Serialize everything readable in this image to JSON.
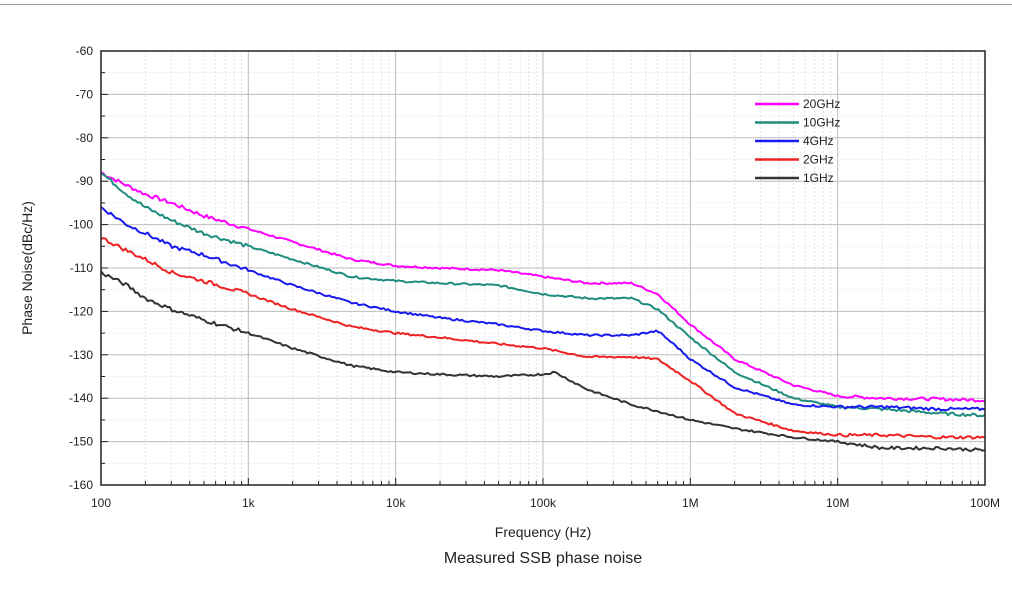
{
  "chart_data": {
    "type": "line",
    "title": "",
    "caption": "Measured SSB phase noise",
    "xlabel": "Frequency (Hz)",
    "ylabel": "Phase Noise(dBc/Hz)",
    "xscale": "log",
    "xlim": [
      100,
      100000000
    ],
    "ylim": [
      -160,
      -60
    ],
    "xticks": [
      100,
      1000,
      10000,
      100000,
      1000000,
      10000000,
      100000000
    ],
    "xtick_labels": [
      "100",
      "1k",
      "10k",
      "100k",
      "1M",
      "10M",
      "100M"
    ],
    "yticks": [
      -60,
      -70,
      -80,
      -90,
      -100,
      -110,
      -120,
      -130,
      -140,
      -150,
      -160
    ],
    "ytick_labels": [
      "-60",
      "-70",
      "-80",
      "-90",
      "-100",
      "-110",
      "-120",
      "-130",
      "-140",
      "-150",
      "-160"
    ],
    "grid": true,
    "legend_position": "top-right",
    "series": [
      {
        "name": "20GHz",
        "color": "#ff00ff",
        "x": [
          100,
          150,
          200,
          300,
          500,
          1000,
          2000,
          5000,
          10000,
          20000,
          50000,
          100000,
          200000,
          400000,
          600000,
          1000000,
          2000000,
          5000000,
          10000000,
          20000000,
          50000000,
          100000000
        ],
        "y": [
          -88,
          -91,
          -93,
          -95,
          -98,
          -101,
          -104,
          -108,
          -109.5,
          -110,
          -110.5,
          -112,
          -113.5,
          -113.5,
          -116,
          -123,
          -131,
          -137,
          -139.5,
          -140,
          -140.2,
          -140.5
        ]
      },
      {
        "name": "10GHz",
        "color": "#1e8c7e",
        "x": [
          100,
          150,
          200,
          300,
          500,
          1000,
          2000,
          5000,
          10000,
          20000,
          50000,
          100000,
          200000,
          400000,
          600000,
          1000000,
          2000000,
          5000000,
          10000000,
          20000000,
          50000000,
          100000000
        ],
        "y": [
          -88,
          -93,
          -96,
          -99,
          -102,
          -105,
          -108,
          -112,
          -113,
          -113.5,
          -114,
          -116,
          -117,
          -117,
          -119.5,
          -126,
          -134,
          -140,
          -142,
          -142.5,
          -143.5,
          -144
        ]
      },
      {
        "name": "4GHz",
        "color": "#1a1aee",
        "x": [
          100,
          150,
          200,
          300,
          500,
          1000,
          2000,
          5000,
          10000,
          20000,
          50000,
          100000,
          200000,
          400000,
          600000,
          800000,
          1000000,
          2000000,
          5000000,
          10000000,
          20000000,
          50000000,
          100000000
        ],
        "y": [
          -96,
          -100,
          -102,
          -105,
          -107,
          -110.5,
          -114,
          -118,
          -120,
          -121.5,
          -123,
          -124.5,
          -125.5,
          -125.5,
          -124.5,
          -128,
          -131,
          -137.5,
          -141.5,
          -142,
          -142,
          -142.5,
          -142.5
        ]
      },
      {
        "name": "2GHz",
        "color": "#ee2222",
        "x": [
          100,
          150,
          200,
          300,
          500,
          1000,
          2000,
          5000,
          10000,
          20000,
          50000,
          100000,
          200000,
          400000,
          600000,
          1000000,
          2000000,
          5000000,
          10000000,
          20000000,
          50000000,
          100000000
        ],
        "y": [
          -103,
          -106,
          -108,
          -111,
          -113,
          -116,
          -119.5,
          -123.5,
          -125,
          -126,
          -127.5,
          -128.5,
          -130.5,
          -130.5,
          -131,
          -136,
          -143.5,
          -147.5,
          -148.5,
          -148.5,
          -149,
          -149
        ]
      },
      {
        "name": "1GHz",
        "color": "#333333",
        "x": [
          100,
          150,
          200,
          300,
          500,
          1000,
          2000,
          5000,
          10000,
          20000,
          50000,
          100000,
          120000,
          200000,
          400000,
          600000,
          1000000,
          2000000,
          5000000,
          10000000,
          20000000,
          50000000,
          100000000
        ],
        "y": [
          -111,
          -114,
          -117,
          -119.5,
          -122,
          -125,
          -128.5,
          -132.5,
          -134,
          -134.5,
          -135,
          -134.5,
          -134,
          -138,
          -141.5,
          -143,
          -145,
          -147,
          -149,
          -150,
          -151.5,
          -151.5,
          -152
        ]
      }
    ]
  }
}
